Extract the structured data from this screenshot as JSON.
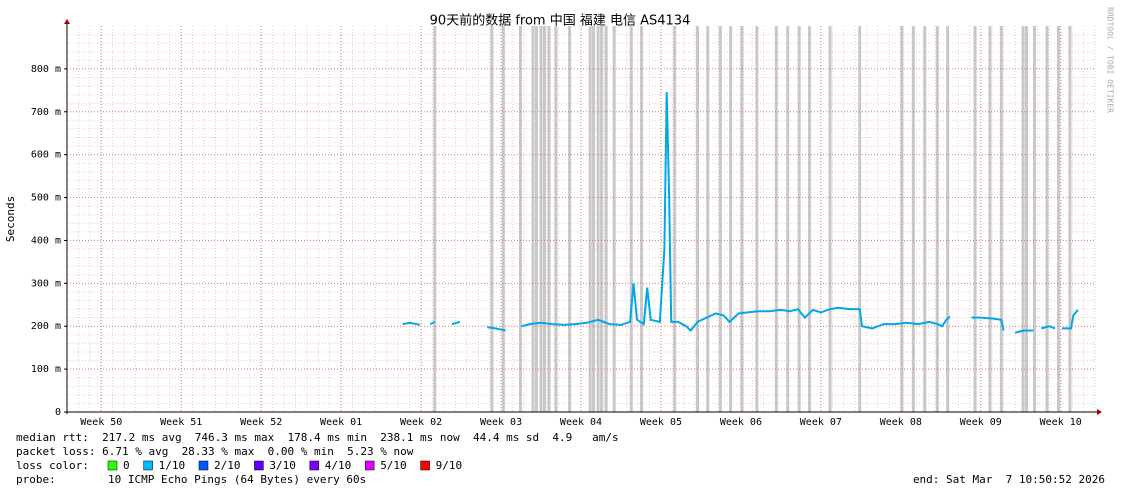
{
  "chart_data": {
    "type": "line",
    "title": "90天前的数据 from 中国 福建 电信 AS4134",
    "y_label": "Seconds",
    "watermark": "RRDTOOL / TOBI OETIKER",
    "color": "#00a8e8",
    "outage_color": "#c8c8c8",
    "grid": true,
    "xlim": [
      0,
      90
    ],
    "xticks": [
      {
        "value": 3,
        "label": "Week 50"
      },
      {
        "value": 10,
        "label": "Week 51"
      },
      {
        "value": 17,
        "label": "Week 52"
      },
      {
        "value": 24,
        "label": "Week 01"
      },
      {
        "value": 31,
        "label": "Week 02"
      },
      {
        "value": 38,
        "label": "Week 03"
      },
      {
        "value": 45,
        "label": "Week 04"
      },
      {
        "value": 52,
        "label": "Week 05"
      },
      {
        "value": 59,
        "label": "Week 06"
      },
      {
        "value": 66,
        "label": "Week 07"
      },
      {
        "value": 73,
        "label": "Week 08"
      },
      {
        "value": 80,
        "label": "Week 09"
      },
      {
        "value": 87,
        "label": "Week 10"
      }
    ],
    "ylim": [
      0,
      0.9
    ],
    "yticks": [
      0,
      {
        "value": 0.1,
        "label": "100 m"
      },
      {
        "value": 0.2,
        "label": "200 m"
      },
      {
        "value": 0.3,
        "label": "300 m"
      },
      {
        "value": 0.4,
        "label": "400 m"
      },
      {
        "value": 0.5,
        "label": "500 m"
      },
      {
        "value": 0.6,
        "label": "600 m"
      },
      {
        "value": 0.7,
        "label": "700 m"
      },
      {
        "value": 0.8,
        "label": "800 m"
      }
    ],
    "x": [
      29.4,
      30.0,
      30.9,
      31.3,
      31.8,
      32.2,
      33.0,
      33.7,
      34.4,
      35.5,
      36.8,
      37.5,
      38.4,
      39.1,
      39.8,
      40.5,
      41.5,
      42.5,
      43.5,
      44.5,
      45.5,
      46.5,
      47.5,
      48.5,
      49.3,
      49.6,
      49.9,
      50.5,
      50.8,
      51.1,
      51.9,
      52.3,
      52.5,
      52.7,
      52.9,
      53.5,
      54.2,
      54.6,
      55.2,
      56.0,
      56.8,
      57.5,
      58.0,
      58.8,
      59.5,
      60.5,
      61.5,
      62.5,
      63.3,
      64.0,
      64.6,
      65.3,
      66.0,
      66.8,
      67.5,
      68.5,
      69.4,
      69.6,
      70.5,
      71.5,
      72.5,
      73.5,
      74.5,
      75.5,
      76.2,
      76.6,
      77.0,
      77.3,
      78.2,
      79.2,
      80.0,
      81.0,
      81.8,
      82.0,
      82.5,
      83.0,
      83.8,
      84.6,
      85.0,
      85.3,
      86.0,
      86.5,
      86.8,
      87.1,
      87.9,
      88.1,
      88.5
    ],
    "values": [
      0.205,
      0.208,
      0.203,
      null,
      0.205,
      0.21,
      null,
      0.205,
      0.21,
      null,
      0.198,
      0.195,
      0.19,
      null,
      0.2,
      0.205,
      0.208,
      0.205,
      0.203,
      0.205,
      0.208,
      0.215,
      0.205,
      0.203,
      0.21,
      0.3,
      0.215,
      0.205,
      0.29,
      0.215,
      0.21,
      0.38,
      0.746,
      0.52,
      0.21,
      0.21,
      0.2,
      0.19,
      0.21,
      0.22,
      0.23,
      0.225,
      0.21,
      0.23,
      0.232,
      0.235,
      0.235,
      0.238,
      0.235,
      0.24,
      0.22,
      0.238,
      0.232,
      0.24,
      0.243,
      0.24,
      0.24,
      0.2,
      0.195,
      0.205,
      0.205,
      0.208,
      0.205,
      0.21,
      0.205,
      0.2,
      0.215,
      0.223,
      null,
      0.22,
      0.22,
      0.218,
      0.215,
      0.19,
      null,
      0.185,
      0.19,
      0.19,
      null,
      0.195,
      0.2,
      0.195,
      null,
      0.195,
      0.195,
      0.225,
      0.238
    ],
    "outages": [
      32.2,
      37.2,
      38.2,
      39.7,
      40.8,
      41.1,
      41.5,
      41.8,
      42.2,
      42.8,
      44.0,
      45.8,
      46.1,
      46.5,
      46.8,
      47.2,
      47.9,
      49.4,
      50.3,
      53.2,
      55.2,
      56.1,
      57.2,
      58.1,
      59.1,
      60.4,
      62.1,
      63.1,
      64.1,
      65.0,
      66.8,
      69.4,
      73.1,
      74.1,
      75.1,
      76.2,
      77.1,
      79.5,
      80.8,
      81.8,
      83.7,
      84.0,
      84.7,
      85.8,
      86.8,
      87.8
    ],
    "stats": [
      "median rtt:  217.2 ms avg  746.3 ms max  178.4 ms min  238.1 ms now  44.4 ms sd  4.9   am/s",
      "packet loss: 6.71 % avg  28.33 % max  0.00 % min  5.23 % now"
    ],
    "loss_legend": {
      "label": "loss color:",
      "items": [
        {
          "name": "0",
          "color": "#26ff00"
        },
        {
          "name": "1/10",
          "color": "#00b8ff"
        },
        {
          "name": "2/10",
          "color": "#0059ff"
        },
        {
          "name": "3/10",
          "color": "#5e00ff"
        },
        {
          "name": "4/10",
          "color": "#7e00ff"
        },
        {
          "name": "5/10",
          "color": "#dd00ff"
        },
        {
          "name": "9/10",
          "color": "#ff0000"
        }
      ]
    },
    "probe_label": "probe:",
    "probe": "10 ICMP Echo Pings (64 Bytes) every 60s",
    "end": "end: Sat Mar  7 10:50:52 2026"
  }
}
